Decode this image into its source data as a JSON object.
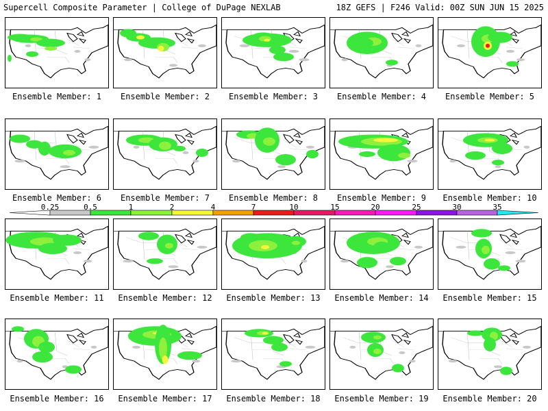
{
  "header": {
    "left": "Supercell Composite Parameter | College of DuPage NEXLAB",
    "right": "18Z GEFS | F246 Valid: 00Z SUN JUN 15 2025"
  },
  "colorbar": {
    "labels": [
      "0.25",
      "0.5",
      "1",
      "2",
      "4",
      "7",
      "10",
      "15",
      "20",
      "25",
      "30",
      "35"
    ],
    "colors": [
      "#c8c8c8",
      "#3ce63c",
      "#8cf03c",
      "#f5f53c",
      "#f0a000",
      "#e61e1e",
      "#dc1e64",
      "#f01eb4",
      "#f01ef0",
      "#8c14dc",
      "#b464dc",
      "#28e6f0"
    ]
  },
  "members": [
    {
      "label": "Ensemble Member: 1",
      "blobs": [
        [
          14,
          28,
          12,
          5,
          1
        ],
        [
          24,
          30,
          18,
          6,
          1
        ],
        [
          30,
          31,
          6,
          3,
          2
        ],
        [
          44,
          36,
          14,
          6,
          1
        ],
        [
          44,
          44,
          6,
          3,
          2
        ],
        [
          26,
          52,
          6,
          4,
          1
        ],
        [
          4,
          58,
          2,
          5,
          1
        ]
      ]
    },
    {
      "label": "Ensemble Member: 2",
      "blobs": [
        [
          14,
          22,
          8,
          6,
          1
        ],
        [
          24,
          28,
          12,
          6,
          1
        ],
        [
          26,
          28,
          4,
          3,
          3
        ],
        [
          42,
          36,
          18,
          8,
          1
        ],
        [
          48,
          42,
          6,
          6,
          2
        ],
        [
          46,
          44,
          3,
          4,
          3
        ]
      ]
    },
    {
      "label": "Ensemble Member: 3",
      "blobs": [
        [
          40,
          26,
          10,
          5,
          1
        ],
        [
          44,
          32,
          24,
          10,
          1
        ],
        [
          42,
          30,
          6,
          4,
          2
        ],
        [
          44,
          32,
          3,
          2,
          3
        ],
        [
          54,
          46,
          8,
          6,
          1
        ],
        [
          60,
          56,
          10,
          6,
          1
        ]
      ]
    },
    {
      "label": "Ensemble Member: 4",
      "blobs": [
        [
          36,
          36,
          20,
          16,
          1
        ],
        [
          42,
          34,
          8,
          6,
          2
        ],
        [
          30,
          36,
          12,
          8,
          1
        ],
        [
          60,
          64,
          6,
          4,
          1
        ]
      ]
    },
    {
      "label": "Ensemble Member: 5",
      "blobs": [
        [
          46,
          34,
          14,
          22,
          1
        ],
        [
          48,
          30,
          6,
          6,
          2
        ],
        [
          48,
          40,
          4,
          6,
          3
        ],
        [
          48,
          40,
          2,
          3,
          4
        ],
        [
          60,
          28,
          12,
          8,
          1
        ],
        [
          72,
          66,
          6,
          4,
          1
        ]
      ]
    },
    {
      "label": "Ensemble Member: 6",
      "blobs": [
        [
          14,
          28,
          10,
          6,
          1
        ],
        [
          28,
          36,
          8,
          6,
          1
        ],
        [
          38,
          42,
          6,
          10,
          1
        ],
        [
          58,
          46,
          16,
          10,
          1
        ],
        [
          62,
          48,
          6,
          4,
          2
        ]
      ]
    },
    {
      "label": "Ensemble Member: 7",
      "blobs": [
        [
          30,
          30,
          18,
          8,
          1
        ],
        [
          32,
          30,
          8,
          4,
          2
        ],
        [
          48,
          36,
          14,
          10,
          1
        ],
        [
          50,
          38,
          6,
          6,
          2
        ],
        [
          64,
          42,
          6,
          4,
          1
        ],
        [
          86,
          48,
          6,
          6,
          1
        ]
      ]
    },
    {
      "label": "Ensemble Member: 8",
      "blobs": [
        [
          26,
          22,
          12,
          6,
          1
        ],
        [
          30,
          24,
          6,
          4,
          2
        ],
        [
          44,
          30,
          12,
          18,
          1
        ],
        [
          46,
          32,
          6,
          6,
          2
        ],
        [
          62,
          58,
          10,
          8,
          1
        ],
        [
          88,
          50,
          6,
          6,
          1
        ]
      ]
    },
    {
      "label": "Ensemble Member: 9",
      "blobs": [
        [
          42,
          32,
          34,
          10,
          1
        ],
        [
          50,
          32,
          20,
          6,
          2
        ],
        [
          54,
          30,
          12,
          3,
          3
        ],
        [
          62,
          48,
          16,
          12,
          1
        ],
        [
          72,
          52,
          6,
          4,
          2
        ],
        [
          36,
          50,
          8,
          4,
          1
        ]
      ]
    },
    {
      "label": "Ensemble Member: 10",
      "blobs": [
        [
          46,
          30,
          22,
          10,
          1
        ],
        [
          48,
          30,
          10,
          4,
          2
        ],
        [
          50,
          30,
          5,
          2,
          3
        ],
        [
          62,
          42,
          10,
          8,
          1
        ],
        [
          36,
          52,
          10,
          6,
          1
        ],
        [
          58,
          62,
          6,
          4,
          1
        ]
      ]
    },
    {
      "label": "Ensemble Member: 11",
      "blobs": [
        [
          30,
          30,
          30,
          12,
          1
        ],
        [
          38,
          32,
          14,
          6,
          2
        ],
        [
          60,
          30,
          14,
          8,
          1
        ],
        [
          46,
          42,
          14,
          8,
          1
        ]
      ]
    },
    {
      "label": "Ensemble Member: 12",
      "blobs": [
        [
          34,
          24,
          10,
          6,
          1
        ],
        [
          52,
          36,
          10,
          14,
          1
        ],
        [
          54,
          38,
          4,
          4,
          2
        ],
        [
          40,
          60,
          8,
          4,
          1
        ]
      ]
    },
    {
      "label": "Ensemble Member: 13",
      "blobs": [
        [
          44,
          38,
          34,
          18,
          1
        ],
        [
          40,
          38,
          14,
          8,
          2
        ],
        [
          42,
          40,
          4,
          3,
          3
        ],
        [
          72,
          32,
          10,
          8,
          1
        ],
        [
          72,
          34,
          4,
          3,
          2
        ],
        [
          28,
          26,
          10,
          6,
          1
        ]
      ]
    },
    {
      "label": "Ensemble Member: 14",
      "blobs": [
        [
          42,
          34,
          26,
          16,
          1
        ],
        [
          46,
          32,
          10,
          6,
          2
        ],
        [
          50,
          40,
          8,
          8,
          1
        ],
        [
          36,
          62,
          10,
          8,
          1
        ],
        [
          66,
          60,
          8,
          6,
          1
        ]
      ]
    },
    {
      "label": "Ensemble Member: 15",
      "blobs": [
        [
          42,
          20,
          10,
          6,
          1
        ],
        [
          44,
          42,
          8,
          14,
          1
        ],
        [
          46,
          44,
          4,
          6,
          2
        ],
        [
          52,
          64,
          8,
          8,
          1
        ],
        [
          64,
          70,
          6,
          4,
          1
        ]
      ]
    },
    {
      "label": "Ensemble Member: 16",
      "blobs": [
        [
          12,
          14,
          6,
          4,
          1
        ],
        [
          30,
          28,
          12,
          14,
          1
        ],
        [
          32,
          32,
          6,
          8,
          2
        ],
        [
          40,
          40,
          8,
          8,
          1
        ],
        [
          36,
          54,
          10,
          8,
          1
        ],
        [
          66,
          72,
          8,
          6,
          1
        ]
      ]
    },
    {
      "label": "Ensemble Member: 17",
      "blobs": [
        [
          40,
          24,
          26,
          14,
          1
        ],
        [
          42,
          22,
          14,
          6,
          2
        ],
        [
          44,
          20,
          6,
          2,
          3
        ],
        [
          48,
          36,
          8,
          28,
          1
        ],
        [
          48,
          42,
          4,
          16,
          2
        ],
        [
          50,
          58,
          3,
          6,
          3
        ],
        [
          74,
          52,
          12,
          6,
          1
        ]
      ]
    },
    {
      "label": "Ensemble Member: 18",
      "blobs": [
        [
          36,
          20,
          14,
          6,
          1
        ],
        [
          40,
          20,
          6,
          3,
          2
        ],
        [
          42,
          20,
          3,
          2,
          3
        ],
        [
          50,
          30,
          10,
          6,
          1
        ],
        [
          56,
          40,
          8,
          6,
          1
        ],
        [
          62,
          64,
          6,
          4,
          1
        ]
      ]
    },
    {
      "label": "Ensemble Member: 19",
      "blobs": [
        [
          42,
          26,
          12,
          8,
          1
        ],
        [
          46,
          26,
          4,
          3,
          2
        ],
        [
          44,
          44,
          8,
          10,
          1
        ],
        [
          46,
          46,
          4,
          4,
          2
        ],
        [
          66,
          70,
          6,
          6,
          1
        ]
      ]
    },
    {
      "label": "Ensemble Member: 20",
      "blobs": [
        [
          52,
          22,
          10,
          10,
          1
        ],
        [
          54,
          24,
          4,
          6,
          2
        ],
        [
          50,
          36,
          6,
          10,
          1
        ],
        [
          36,
          20,
          8,
          4,
          1
        ],
        [
          66,
          74,
          6,
          6,
          1
        ]
      ]
    }
  ]
}
